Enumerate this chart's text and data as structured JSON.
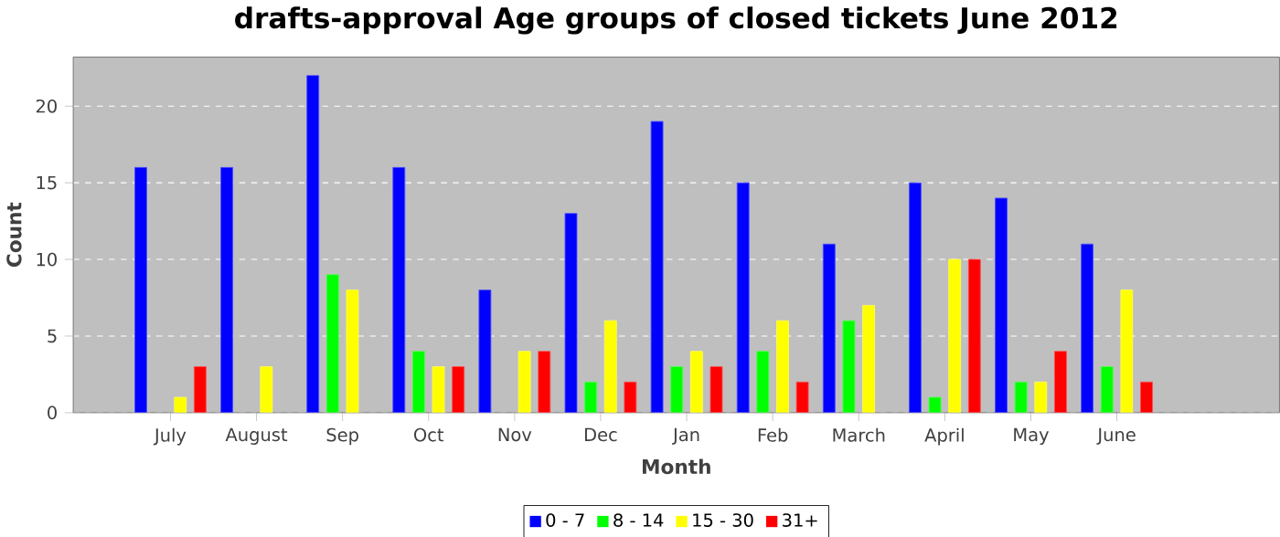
{
  "chart_data": {
    "type": "bar",
    "title": "drafts-approval Age groups of closed tickets June 2012",
    "xlabel": "Month",
    "ylabel": "Count",
    "categories": [
      "July",
      "August",
      "Sep",
      "Oct",
      "Nov",
      "Dec",
      "Jan",
      "Feb",
      "March",
      "April",
      "May",
      "June"
    ],
    "series": [
      {
        "name": "0 - 7",
        "color": "#0000ff",
        "values": [
          16,
          16,
          22,
          16,
          8,
          13,
          19,
          15,
          11,
          15,
          14,
          11
        ]
      },
      {
        "name": "8 - 14",
        "color": "#00ff00",
        "values": [
          null,
          null,
          9,
          4,
          null,
          2,
          3,
          4,
          6,
          1,
          2,
          3
        ]
      },
      {
        "name": "15 - 30",
        "color": "#ffff00",
        "values": [
          1,
          3,
          8,
          3,
          4,
          6,
          4,
          6,
          7,
          10,
          2,
          8
        ]
      },
      {
        "name": "31+",
        "color": "#ff0000",
        "values": [
          3,
          null,
          null,
          3,
          4,
          2,
          3,
          2,
          null,
          10,
          4,
          2
        ]
      }
    ],
    "ylim": [
      0,
      23.2
    ],
    "yticks": [
      0,
      5,
      10,
      15,
      20
    ],
    "grid": "y",
    "legend": "bottom"
  }
}
